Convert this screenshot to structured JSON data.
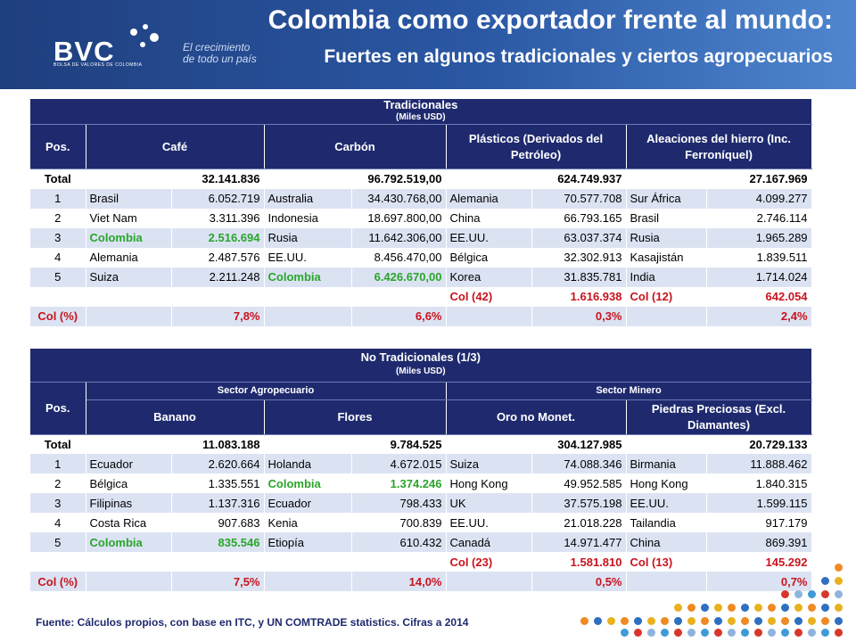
{
  "header": {
    "logo_text": "BVC",
    "logo_subtext": "BOLSA DE VALORES DE COLOMBIA",
    "tagline": "El crecimiento de todo un país",
    "title": "Colombia como exportador frente al  mundo:",
    "subtitle": "Fuertes en algunos tradicionales y ciertos agropecuarios"
  },
  "tradicionales": {
    "title": "Tradicionales",
    "units": "(Miles USD)",
    "pos_label": "Pos.",
    "headers": [
      "Café",
      "Carbón",
      "Plásticos (Derivados del Petróleo)",
      "Aleaciones del hierro (Inc. Ferroníquel)"
    ],
    "total_label": "Total",
    "totals": [
      "32.141.836",
      "96.792.519,00",
      "624.749.937",
      "27.167.969"
    ],
    "rows": [
      {
        "pos": "1",
        "c": [
          [
            "Brasil",
            "6.052.719"
          ],
          [
            "Australia",
            "34.430.768,00"
          ],
          [
            "Alemania",
            "70.577.708"
          ],
          [
            "Sur África",
            "4.099.277"
          ]
        ]
      },
      {
        "pos": "2",
        "c": [
          [
            "Viet Nam",
            "3.311.396"
          ],
          [
            "Indonesia",
            "18.697.800,00"
          ],
          [
            "China",
            "66.793.165"
          ],
          [
            "Brasil",
            "2.746.114"
          ]
        ]
      },
      {
        "pos": "3",
        "c": [
          [
            "Colombia",
            "2.516.694"
          ],
          [
            "Rusia",
            "11.642.306,00"
          ],
          [
            "EE.UU.",
            "63.037.374"
          ],
          [
            "Rusia",
            "1.965.289"
          ]
        ]
      },
      {
        "pos": "4",
        "c": [
          [
            "Alemania",
            "2.487.576"
          ],
          [
            "EE.UU.",
            "8.456.470,00"
          ],
          [
            "Bélgica",
            "32.302.913"
          ],
          [
            "Kasajistán",
            "1.839.511"
          ]
        ]
      },
      {
        "pos": "5",
        "c": [
          [
            "Suiza",
            "2.211.248"
          ],
          [
            "Colombia",
            "6.426.670,00"
          ],
          [
            "Korea",
            "31.835.781"
          ],
          [
            "India",
            "1.714.024"
          ]
        ]
      }
    ],
    "col_rank": [
      [
        "",
        ""
      ],
      [
        "",
        ""
      ],
      [
        "Col (42)",
        "1.616.938"
      ],
      [
        "Col (12)",
        "642.054"
      ]
    ],
    "col_pct_label": "Col (%)",
    "col_pct": [
      "7,8%",
      "6,6%",
      "0,3%",
      "2,4%"
    ]
  },
  "no_tradicionales": {
    "title": "No Tradicionales (1/3)",
    "units": "(Miles USD)",
    "pos_label": "Pos.",
    "sectors": [
      "Sector Agropecuario",
      "Sector Minero"
    ],
    "headers": [
      "Banano",
      "Flores",
      "Oro no Monet.",
      "Piedras Preciosas  (Excl. Diamantes)"
    ],
    "total_label": "Total",
    "totals": [
      "11.083.188",
      "9.784.525",
      "304.127.985",
      "20.729.133"
    ],
    "rows": [
      {
        "pos": "1",
        "c": [
          [
            "Ecuador",
            "2.620.664"
          ],
          [
            "Holanda",
            "4.672.015"
          ],
          [
            "Suiza",
            "74.088.346"
          ],
          [
            "Birmania",
            "11.888.462"
          ]
        ]
      },
      {
        "pos": "2",
        "c": [
          [
            "Bélgica",
            "1.335.551"
          ],
          [
            "Colombia",
            "1.374.246"
          ],
          [
            "Hong Kong",
            "49.952.585"
          ],
          [
            "Hong Kong",
            "1.840.315"
          ]
        ]
      },
      {
        "pos": "3",
        "c": [
          [
            "Filipinas",
            "1.137.316"
          ],
          [
            "Ecuador",
            "798.433"
          ],
          [
            "UK",
            "37.575.198"
          ],
          [
            "EE.UU.",
            "1.599.115"
          ]
        ]
      },
      {
        "pos": "4",
        "c": [
          [
            "Costa Rica",
            "907.683"
          ],
          [
            "Kenia",
            "700.839"
          ],
          [
            "EE.UU.",
            "21.018.228"
          ],
          [
            "Tailandia",
            "917.179"
          ]
        ]
      },
      {
        "pos": "5",
        "c": [
          [
            "Colombia",
            "835.546"
          ],
          [
            "Etiopía",
            "610.432"
          ],
          [
            "Canadá",
            "14.971.477"
          ],
          [
            "China",
            "869.391"
          ]
        ]
      }
    ],
    "col_rank": [
      [
        "",
        ""
      ],
      [
        "",
        ""
      ],
      [
        "Col (23)",
        "1.581.810"
      ],
      [
        "Col (13)",
        "145.292"
      ]
    ],
    "col_pct_label": "Col (%)",
    "col_pct": [
      "7,5%",
      "14,0%",
      "0,5%",
      "0,7%"
    ]
  },
  "source": "Fuente: Cálculos propios, con base en ITC, y UN COMTRADE statistics. Cifras a 2014",
  "colors": {
    "header_bg": "#1f2a6e",
    "band": "#dbe3f3",
    "colombia": "#2aa52a",
    "highlight": "#c8141e"
  }
}
